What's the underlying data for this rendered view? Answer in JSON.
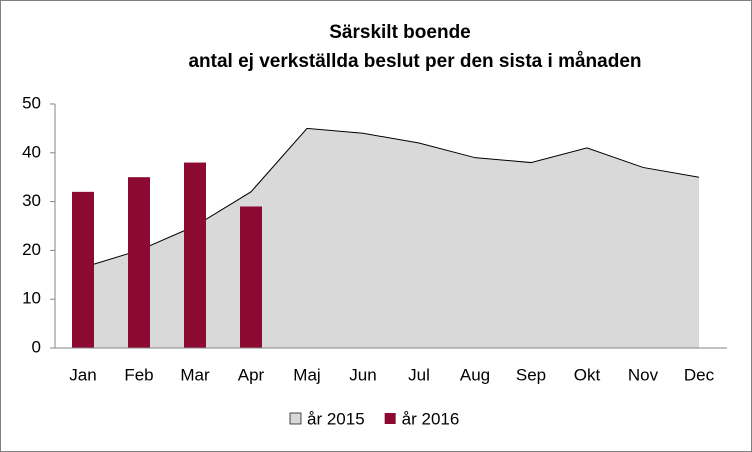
{
  "chart_data": {
    "type": "bar-area",
    "title": "Särskilt boende",
    "subtitle": "antal ej verkställda beslut per den sista i månaden",
    "categories": [
      "Jan",
      "Feb",
      "Mar",
      "Apr",
      "Maj",
      "Jun",
      "Jul",
      "Aug",
      "Sep",
      "Okt",
      "Nov",
      "Dec"
    ],
    "series": [
      {
        "name": "år 2015",
        "type": "area",
        "color": "#d9d9d9",
        "values": [
          16.5,
          20,
          25,
          32,
          45,
          44,
          42,
          39,
          38,
          41,
          37,
          35
        ]
      },
      {
        "name": "år 2016",
        "type": "bar",
        "color": "#8c0a32",
        "values": [
          32,
          35,
          38,
          29,
          null,
          null,
          null,
          null,
          null,
          null,
          null,
          null
        ]
      }
    ],
    "ylim": [
      0,
      50
    ],
    "yticks": [
      0,
      10,
      20,
      30,
      40,
      50
    ],
    "grid": false,
    "legend": "bottom"
  }
}
